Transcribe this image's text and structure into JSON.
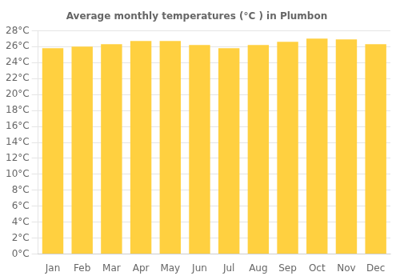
{
  "chart_data": {
    "type": "bar",
    "title": "Average monthly temperatures (°C ) in Plumbon",
    "categories": [
      "Jan",
      "Feb",
      "Mar",
      "Apr",
      "May",
      "Jun",
      "Jul",
      "Aug",
      "Sep",
      "Oct",
      "Nov",
      "Dec"
    ],
    "values": [
      25.8,
      26.0,
      26.3,
      26.7,
      26.7,
      26.2,
      25.8,
      26.2,
      26.6,
      27.0,
      26.9,
      26.3
    ],
    "color": "#FFD040",
    "ylim": [
      0,
      28
    ],
    "yticks": [
      {
        "value": 0,
        "label": "0°C"
      },
      {
        "value": 2,
        "label": "2°C"
      },
      {
        "value": 4,
        "label": "4°C"
      },
      {
        "value": 6,
        "label": "6°C"
      },
      {
        "value": 8,
        "label": "8°C"
      },
      {
        "value": 10,
        "label": "10°C"
      },
      {
        "value": 12,
        "label": "12°C"
      },
      {
        "value": 14,
        "label": "14°C"
      },
      {
        "value": 16,
        "label": "16°C"
      },
      {
        "value": 18,
        "label": "18°C"
      },
      {
        "value": 20,
        "label": "20°C"
      },
      {
        "value": 22,
        "label": "22°C"
      },
      {
        "value": 24,
        "label": "24°C"
      },
      {
        "value": 26,
        "label": "26°C"
      },
      {
        "value": 28,
        "label": "28°C"
      }
    ],
    "grid": true
  }
}
